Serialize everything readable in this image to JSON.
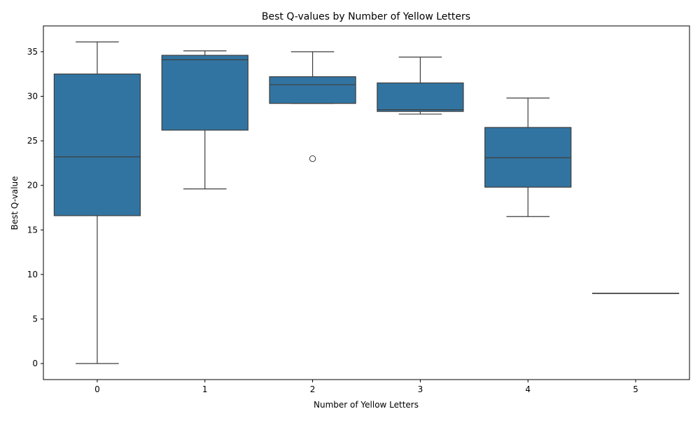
{
  "chart_data": {
    "type": "box",
    "title": "Best Q-values by Number of Yellow Letters",
    "xlabel": "Number of Yellow Letters",
    "ylabel": "Best Q-value",
    "categories": [
      "0",
      "1",
      "2",
      "3",
      "4",
      "5"
    ],
    "boxes": [
      {
        "category": "0",
        "whisker_low": 0.0,
        "q1": 16.6,
        "median": 23.2,
        "q3": 32.5,
        "whisker_high": 36.1,
        "outliers": []
      },
      {
        "category": "1",
        "whisker_low": 19.6,
        "q1": 26.2,
        "median": 34.1,
        "q3": 34.6,
        "whisker_high": 35.1,
        "outliers": []
      },
      {
        "category": "2",
        "whisker_low": 29.2,
        "q1": 29.2,
        "median": 31.3,
        "q3": 32.2,
        "whisker_high": 35.0,
        "outliers": [
          23.0
        ]
      },
      {
        "category": "3",
        "whisker_low": 28.0,
        "q1": 28.3,
        "median": 28.5,
        "q3": 31.5,
        "whisker_high": 34.4,
        "outliers": []
      },
      {
        "category": "4",
        "whisker_low": 16.5,
        "q1": 19.8,
        "median": 23.1,
        "q3": 26.5,
        "whisker_high": 29.8,
        "outliers": []
      },
      {
        "category": "5",
        "whisker_low": 7.9,
        "q1": 7.9,
        "median": 7.9,
        "q3": 7.9,
        "whisker_high": 7.9,
        "outliers": []
      }
    ],
    "yticks": [
      0,
      5,
      10,
      15,
      20,
      25,
      30,
      35
    ],
    "ylim": [
      -1.8,
      37.9
    ],
    "grid": false,
    "box_color": "#3274a1",
    "line_color": "#3d3d3d"
  }
}
